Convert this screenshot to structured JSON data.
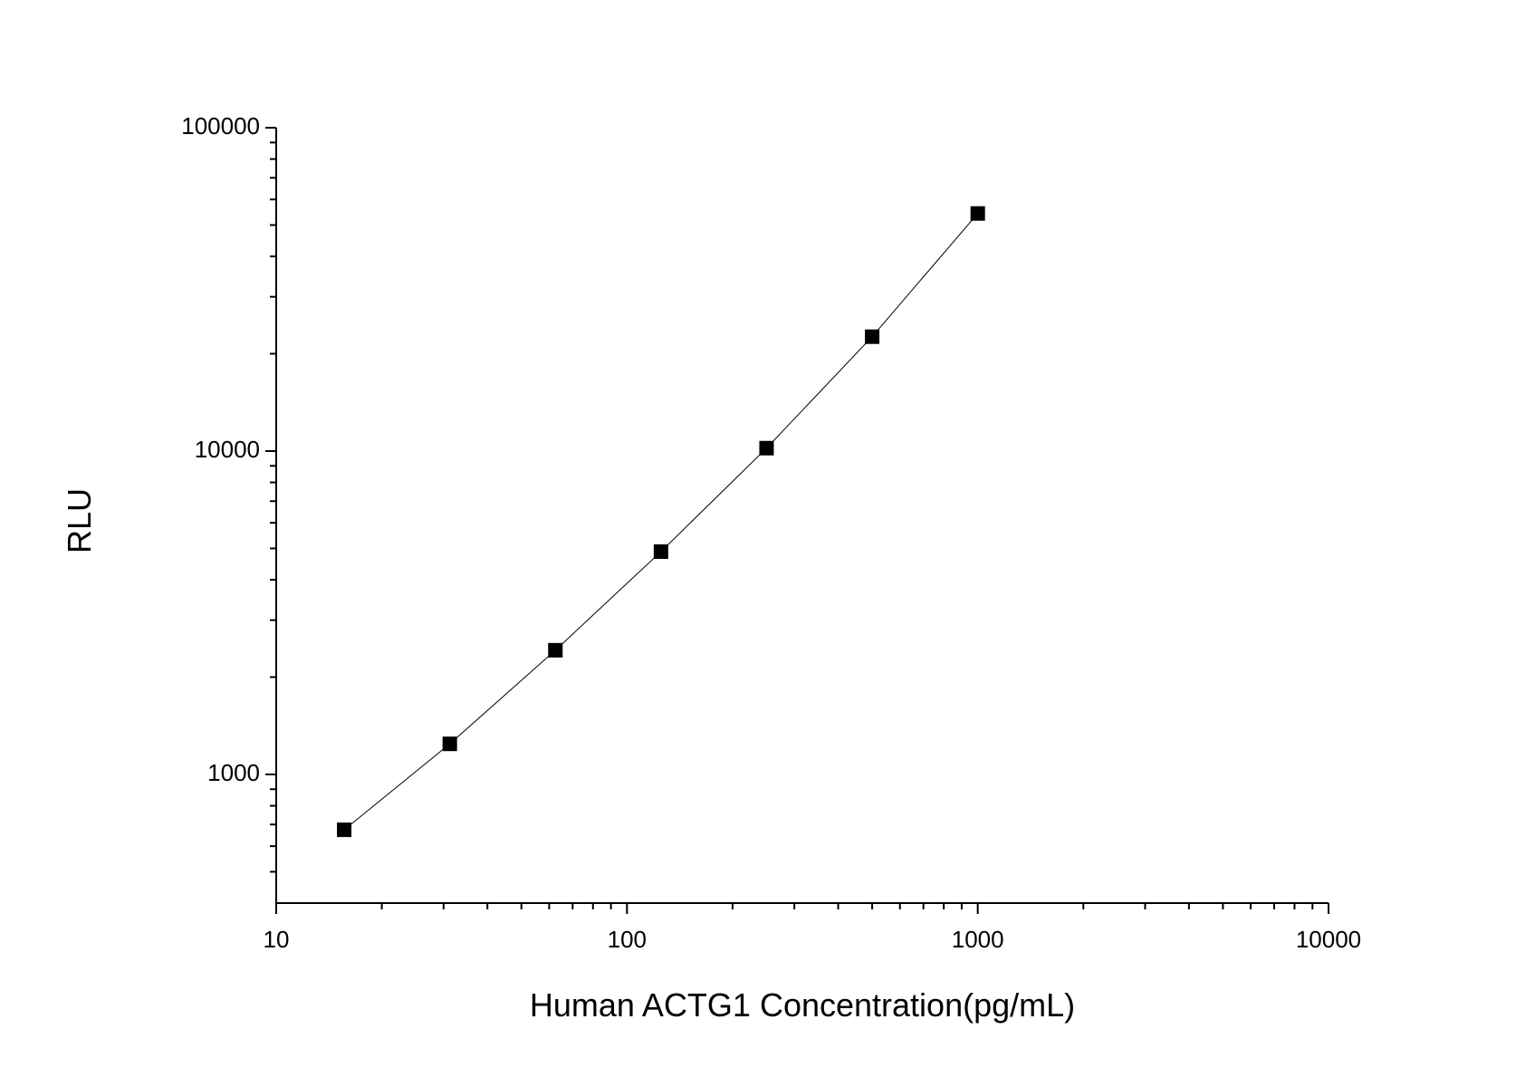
{
  "chart_data": {
    "type": "scatter",
    "x_label": "Human ACTG1 Concentration(pg/mL)",
    "y_label": "RLU",
    "x": [
      15.625,
      31.25,
      62.5,
      125,
      250,
      500,
      1000
    ],
    "series": [
      {
        "color": "#000000",
        "values": [
          674,
          1243,
          2421,
          4887,
          10210,
          22580,
          54300
        ]
      }
    ],
    "xlim": [
      10,
      10000
    ],
    "ylim": [
      400,
      100000
    ],
    "xticks": [
      10,
      100,
      1000,
      10000
    ],
    "yticks": [
      1000,
      10000,
      100000
    ],
    "xscale": "log",
    "yscale": "log",
    "minor_ticks": true,
    "connect_points": true,
    "grid": false
  }
}
